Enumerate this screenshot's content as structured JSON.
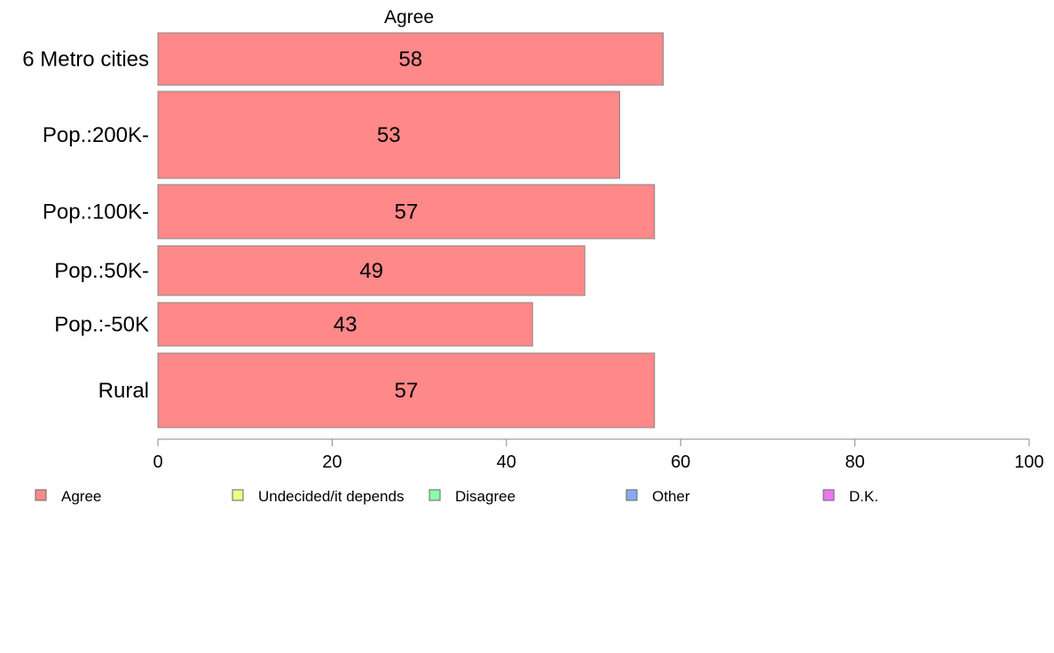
{
  "chart_data": {
    "type": "bar",
    "orientation": "horizontal",
    "title": "Agree",
    "categories": [
      "6 Metro cities",
      "Pop.:200K-",
      "Pop.:100K-",
      "Pop.:50K-",
      "Pop.:-50K",
      "Rural"
    ],
    "series": [
      {
        "name": "Agree",
        "values": [
          58,
          53,
          57,
          49,
          43,
          57
        ]
      }
    ],
    "xlim": [
      0,
      100
    ],
    "xticks": [
      0,
      20,
      40,
      60,
      80,
      100
    ],
    "grid": false,
    "legend": {
      "placement": "bottom",
      "items": [
        {
          "label": "Agree",
          "color": "#ff8888"
        },
        {
          "label": "Undecided/it depends",
          "color": "#eeff88"
        },
        {
          "label": "Disagree",
          "color": "#88ffaa"
        },
        {
          "label": "Other",
          "color": "#88aaee"
        },
        {
          "label": "D.K.",
          "color": "#ee77ee"
        }
      ]
    },
    "colors": {
      "bar": "#ff8888",
      "bar_border": "#888888",
      "axis": "#888888"
    }
  }
}
